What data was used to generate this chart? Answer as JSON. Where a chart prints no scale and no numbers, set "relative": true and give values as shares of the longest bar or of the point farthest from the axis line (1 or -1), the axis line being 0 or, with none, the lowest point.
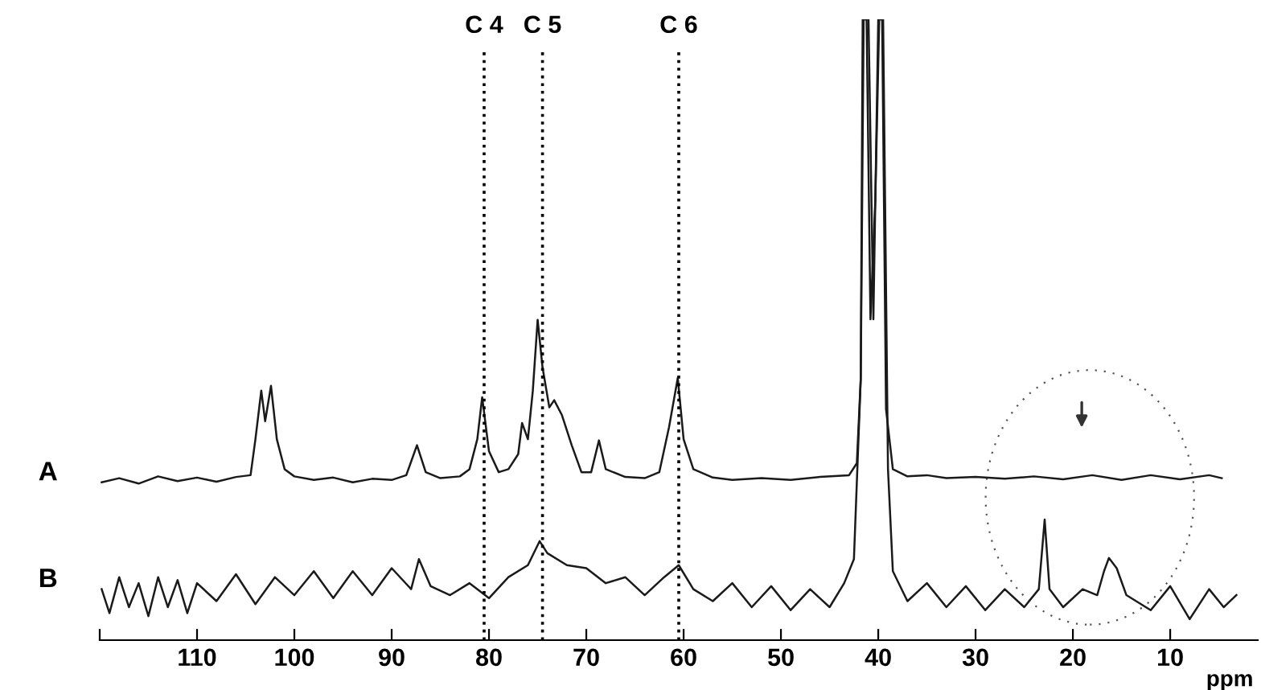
{
  "chart_data": {
    "type": "line",
    "relative": true,
    "xlabel": "ppm",
    "xlim": [
      120,
      1
    ],
    "xticks": [
      {
        "value": 120,
        "label": null
      },
      110,
      100,
      90,
      80,
      70,
      60,
      50,
      40,
      30,
      20,
      10
    ],
    "series": [
      {
        "name": "A",
        "color": "#1a1a1a",
        "x": [
          119.8,
          118,
          116,
          114,
          112,
          110,
          108,
          106,
          104.5,
          104,
          103.4,
          103,
          102.4,
          101.8,
          101,
          100,
          98,
          96,
          94,
          92,
          90,
          88.5,
          87.4,
          86.5,
          85,
          83,
          82,
          81.2,
          80.7,
          80,
          79,
          78,
          77,
          76.6,
          76,
          75.5,
          75,
          74.5,
          73.8,
          73.3,
          72.5,
          71.5,
          70.5,
          69.5,
          68.7,
          68,
          66,
          64,
          62.5,
          61.5,
          60.6,
          60,
          59,
          57,
          55,
          52,
          49,
          46,
          43,
          42.2,
          41.8,
          41.6,
          41.2,
          40.8,
          40.3,
          39.9,
          39.6,
          39.2,
          38.5,
          37,
          35,
          33,
          30,
          27,
          24,
          21,
          18,
          15,
          12,
          9,
          6,
          4.7
        ],
        "values": [
          0.228,
          0.235,
          0.226,
          0.238,
          0.23,
          0.236,
          0.229,
          0.237,
          0.24,
          0.3,
          0.381,
          0.33,
          0.389,
          0.3,
          0.25,
          0.238,
          0.232,
          0.236,
          0.228,
          0.234,
          0.232,
          0.24,
          0.29,
          0.245,
          0.235,
          0.238,
          0.25,
          0.3,
          0.37,
          0.28,
          0.245,
          0.25,
          0.275,
          0.327,
          0.3,
          0.38,
          0.499,
          0.42,
          0.353,
          0.365,
          0.34,
          0.29,
          0.245,
          0.245,
          0.298,
          0.25,
          0.237,
          0.235,
          0.245,
          0.32,
          0.402,
          0.3,
          0.25,
          0.236,
          0.232,
          0.235,
          0.232,
          0.237,
          0.24,
          0.26,
          0.4,
          1.0,
          1.0,
          0.5,
          0.7,
          1.0,
          1.0,
          0.35,
          0.25,
          0.238,
          0.24,
          0.235,
          0.237,
          0.234,
          0.238,
          0.233,
          0.24,
          0.232,
          0.24,
          0.233,
          0.24,
          0.235
        ]
      },
      {
        "name": "B",
        "color": "#1a1a1a",
        "x": [
          119.8,
          119,
          118,
          117,
          116,
          115,
          114,
          113,
          112,
          111,
          110,
          108,
          106,
          104,
          102,
          100,
          98,
          96,
          94,
          92,
          90,
          88,
          87.2,
          86,
          84,
          82,
          80,
          78,
          76,
          74.8,
          74,
          72,
          70,
          68,
          66,
          64,
          62,
          60.5,
          59,
          57,
          55,
          53,
          51,
          49,
          47,
          45,
          43.5,
          42.5,
          41.8,
          41.5,
          41,
          40.5,
          40,
          39.5,
          39,
          38.5,
          37,
          35,
          33,
          31,
          29,
          27,
          25,
          23.5,
          22.9,
          22.4,
          21,
          19,
          17.5,
          16.8,
          16.3,
          15.5,
          14.5,
          12,
          10,
          8,
          6,
          4.5,
          3.2
        ],
        "values": [
          0.05,
          0.01,
          0.07,
          0.02,
          0.06,
          0.005,
          0.07,
          0.02,
          0.065,
          0.01,
          0.06,
          0.03,
          0.075,
          0.025,
          0.07,
          0.04,
          0.08,
          0.035,
          0.08,
          0.04,
          0.085,
          0.05,
          0.1,
          0.055,
          0.04,
          0.06,
          0.035,
          0.07,
          0.09,
          0.13,
          0.11,
          0.09,
          0.085,
          0.06,
          0.07,
          0.04,
          0.07,
          0.09,
          0.05,
          0.03,
          0.06,
          0.02,
          0.055,
          0.015,
          0.05,
          0.02,
          0.06,
          0.1,
          0.4,
          1.0,
          1.0,
          0.5,
          1.0,
          1.0,
          0.25,
          0.08,
          0.03,
          0.06,
          0.02,
          0.055,
          0.015,
          0.05,
          0.02,
          0.05,
          0.166,
          0.05,
          0.02,
          0.05,
          0.04,
          0.08,
          0.102,
          0.085,
          0.04,
          0.015,
          0.055,
          0.0,
          0.05,
          0.02,
          0.04
        ]
      }
    ],
    "ref_lines": [
      {
        "axis": "x",
        "value": 80.5,
        "label": "C 4",
        "color": "#000000",
        "line_style": "dotted"
      },
      {
        "axis": "x",
        "value": 74.5,
        "label": "C 5",
        "color": "#000000",
        "line_style": "dotted"
      },
      {
        "axis": "x",
        "value": 60.5,
        "label": "C 6",
        "color": "#000000",
        "line_style": "dotted"
      }
    ],
    "marker": "none",
    "line_style": "solid"
  }
}
